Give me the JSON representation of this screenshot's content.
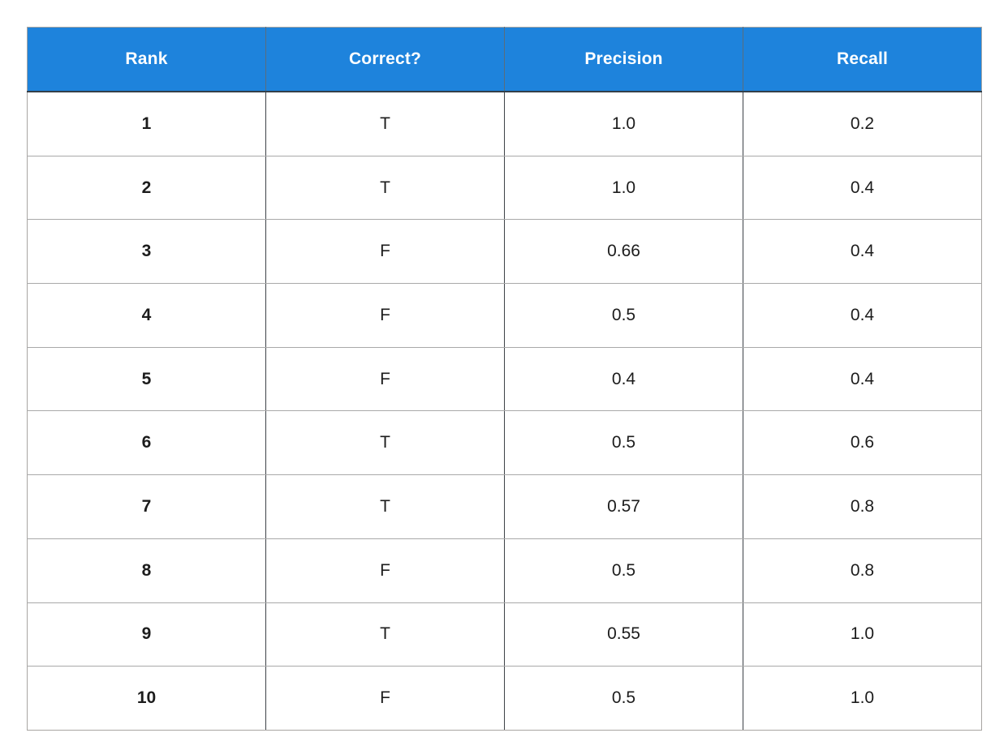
{
  "table": {
    "headers": [
      "Rank",
      "Correct?",
      "Precision",
      "Recall"
    ],
    "rows": [
      {
        "rank": "1",
        "correct": "T",
        "precision": "1.0",
        "recall": "0.2"
      },
      {
        "rank": "2",
        "correct": "T",
        "precision": "1.0",
        "recall": "0.4"
      },
      {
        "rank": "3",
        "correct": "F",
        "precision": "0.66",
        "recall": "0.4"
      },
      {
        "rank": "4",
        "correct": "F",
        "precision": "0.5",
        "recall": "0.4"
      },
      {
        "rank": "5",
        "correct": "F",
        "precision": "0.4",
        "recall": "0.4"
      },
      {
        "rank": "6",
        "correct": "T",
        "precision": "0.5",
        "recall": "0.6"
      },
      {
        "rank": "7",
        "correct": "T",
        "precision": "0.57",
        "recall": "0.8"
      },
      {
        "rank": "8",
        "correct": "F",
        "precision": "0.5",
        "recall": "0.8"
      },
      {
        "rank": "9",
        "correct": "T",
        "precision": "0.55",
        "recall": "1.0"
      },
      {
        "rank": "10",
        "correct": "F",
        "precision": "0.5",
        "recall": "1.0"
      }
    ],
    "colors": {
      "header_background": "#1e83dc",
      "header_text": "#ffffff",
      "body_text": "#1c1c1c",
      "column_divider": "#3d4248",
      "row_divider": "#a9a9a9",
      "outer_border": "#a8a5a2"
    }
  },
  "chart_data": {
    "type": "table",
    "title": "",
    "columns": [
      "Rank",
      "Correct?",
      "Precision",
      "Recall"
    ],
    "rows": [
      [
        "1",
        "T",
        "1.0",
        "0.2"
      ],
      [
        "2",
        "T",
        "1.0",
        "0.4"
      ],
      [
        "3",
        "F",
        "0.66",
        "0.4"
      ],
      [
        "4",
        "F",
        "0.5",
        "0.4"
      ],
      [
        "5",
        "F",
        "0.4",
        "0.4"
      ],
      [
        "6",
        "T",
        "0.5",
        "0.6"
      ],
      [
        "7",
        "T",
        "0.57",
        "0.8"
      ],
      [
        "8",
        "F",
        "0.5",
        "0.8"
      ],
      [
        "9",
        "T",
        "0.55",
        "1.0"
      ],
      [
        "10",
        "F",
        "0.5",
        "1.0"
      ]
    ]
  }
}
